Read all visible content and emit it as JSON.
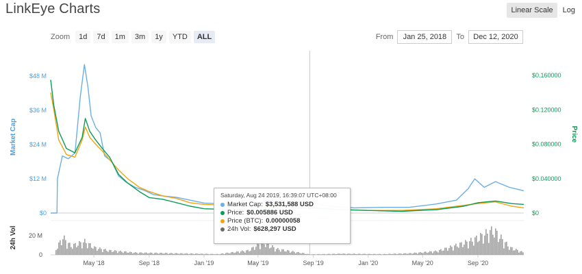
{
  "title": "LinkEye Charts",
  "scale_buttons": {
    "linear": "Linear Scale",
    "log": "Log",
    "active": "linear"
  },
  "zoom": {
    "label": "Zoom",
    "options": [
      "1d",
      "7d",
      "1m",
      "3m",
      "1y",
      "YTD",
      "ALL"
    ],
    "active": "ALL"
  },
  "range": {
    "from_label": "From",
    "from_value": "Jan 25, 2018",
    "to_label": "To",
    "to_value": "Dec 12, 2020"
  },
  "colors": {
    "market_cap": "#6aaee8",
    "price": "#0a9b57",
    "price_btc": "#f2a40f",
    "volume": "#8a8a8a"
  },
  "tooltip": {
    "header": "Saturday, Aug 24 2019, 16:39:07 UTC+08:00",
    "rows": [
      {
        "label": "Market Cap:",
        "value": "$3,531,588 USD",
        "color": "#6aaee8"
      },
      {
        "label": "Price:",
        "value": "$0.005886 USD",
        "color": "#0a9b57"
      },
      {
        "label": "Price (BTC):",
        "value": "0.00000058",
        "color": "#f2a40f"
      },
      {
        "label": "24h Vol:",
        "value": "$628,297 USD",
        "color": "#6b6b6b"
      }
    ]
  },
  "chart_data": {
    "type": "line",
    "title": "LinkEye Charts",
    "x_range": [
      "2018-01-25",
      "2020-12-12"
    ],
    "x_ticks": [
      "May '18",
      "Sep '18",
      "Jan '19",
      "May '19",
      "Sep '19",
      "Jan '20",
      "May '20",
      "Sep '20"
    ],
    "y_left": {
      "label": "Market Cap",
      "ticks": [
        "$0",
        "$12 M",
        "$24 M",
        "$36 M",
        "$48 M"
      ],
      "range": [
        0,
        53000000
      ]
    },
    "y_right": {
      "label": "Price",
      "ticks": [
        "$0",
        "$0.040000",
        "$0.080000",
        "$0.120000",
        "$0.160000"
      ],
      "range": [
        0,
        0.176
      ]
    },
    "volume_axis": {
      "label": "24h Vol",
      "ticks": [
        "0",
        "20 M"
      ],
      "range": [
        0,
        36000000
      ]
    },
    "crosshair_date": "2019-08-24",
    "series": [
      {
        "name": "Market Cap",
        "axis": "left",
        "points": [
          [
            "2018-01-25",
            0
          ],
          [
            "2018-02-08",
            0
          ],
          [
            "2018-02-09",
            12000000
          ],
          [
            "2018-02-20",
            20000000
          ],
          [
            "2018-03-05",
            19000000
          ],
          [
            "2018-03-20",
            21000000
          ],
          [
            "2018-04-01",
            41000000
          ],
          [
            "2018-04-10",
            52000000
          ],
          [
            "2018-04-18",
            44000000
          ],
          [
            "2018-04-25",
            34000000
          ],
          [
            "2018-05-05",
            30000000
          ],
          [
            "2018-05-15",
            28000000
          ],
          [
            "2018-05-25",
            20000000
          ],
          [
            "2018-06-10",
            18000000
          ],
          [
            "2018-06-25",
            13000000
          ],
          [
            "2018-07-10",
            11000000
          ],
          [
            "2018-08-01",
            9000000
          ],
          [
            "2018-08-20",
            8000000
          ],
          [
            "2018-09-10",
            6500000
          ],
          [
            "2018-10-01",
            6000000
          ],
          [
            "2018-11-01",
            5500000
          ],
          [
            "2018-12-01",
            4500000
          ],
          [
            "2019-01-01",
            3500000
          ],
          [
            "2019-02-15",
            3200000
          ],
          [
            "2019-04-01",
            3500000
          ],
          [
            "2019-05-15",
            4000000
          ],
          [
            "2019-06-20",
            4500000
          ],
          [
            "2019-08-24",
            3531588
          ],
          [
            "2019-10-01",
            2500000
          ],
          [
            "2019-12-01",
            1800000
          ],
          [
            "2020-02-01",
            2000000
          ],
          [
            "2020-04-01",
            2000000
          ],
          [
            "2020-06-01",
            3200000
          ],
          [
            "2020-07-15",
            4500000
          ],
          [
            "2020-08-10",
            8500000
          ],
          [
            "2020-08-25",
            12000000
          ],
          [
            "2020-09-15",
            9000000
          ],
          [
            "2020-10-10",
            11000000
          ],
          [
            "2020-11-10",
            9000000
          ],
          [
            "2020-12-12",
            7800000
          ]
        ]
      },
      {
        "name": "Price",
        "axis": "right",
        "points": [
          [
            "2018-01-25",
            0.155
          ],
          [
            "2018-02-01",
            0.125
          ],
          [
            "2018-02-12",
            0.095
          ],
          [
            "2018-03-01",
            0.075
          ],
          [
            "2018-03-20",
            0.07
          ],
          [
            "2018-04-05",
            0.088
          ],
          [
            "2018-04-12",
            0.11
          ],
          [
            "2018-04-22",
            0.095
          ],
          [
            "2018-05-05",
            0.085
          ],
          [
            "2018-05-20",
            0.075
          ],
          [
            "2018-06-05",
            0.065
          ],
          [
            "2018-06-25",
            0.045
          ],
          [
            "2018-07-15",
            0.035
          ],
          [
            "2018-08-10",
            0.025
          ],
          [
            "2018-09-01",
            0.018
          ],
          [
            "2018-10-01",
            0.016
          ],
          [
            "2018-11-01",
            0.012
          ],
          [
            "2018-12-01",
            0.008
          ],
          [
            "2019-01-01",
            0.005
          ],
          [
            "2019-03-01",
            0.004
          ],
          [
            "2019-05-01",
            0.005
          ],
          [
            "2019-06-20",
            0.006
          ],
          [
            "2019-08-24",
            0.005886
          ],
          [
            "2019-11-01",
            0.004
          ],
          [
            "2020-01-01",
            0.003
          ],
          [
            "2020-03-15",
            0.002
          ],
          [
            "2020-06-01",
            0.004
          ],
          [
            "2020-08-01",
            0.008
          ],
          [
            "2020-09-01",
            0.012
          ],
          [
            "2020-10-10",
            0.014
          ],
          [
            "2020-11-15",
            0.011
          ],
          [
            "2020-12-12",
            0.01
          ]
        ]
      },
      {
        "name": "Price (BTC)",
        "axis": "right",
        "points": [
          [
            "2018-01-25",
            0.14
          ],
          [
            "2018-02-01",
            0.12
          ],
          [
            "2018-02-12",
            0.085
          ],
          [
            "2018-03-01",
            0.068
          ],
          [
            "2018-03-20",
            0.065
          ],
          [
            "2018-04-05",
            0.085
          ],
          [
            "2018-04-12",
            0.1
          ],
          [
            "2018-04-22",
            0.088
          ],
          [
            "2018-05-05",
            0.08
          ],
          [
            "2018-05-20",
            0.072
          ],
          [
            "2018-06-05",
            0.062
          ],
          [
            "2018-06-25",
            0.05
          ],
          [
            "2018-07-15",
            0.04
          ],
          [
            "2018-08-10",
            0.03
          ],
          [
            "2018-09-01",
            0.025
          ],
          [
            "2018-10-01",
            0.02
          ],
          [
            "2018-11-01",
            0.017
          ],
          [
            "2018-12-01",
            0.012
          ],
          [
            "2019-01-01",
            0.01
          ],
          [
            "2019-03-01",
            0.009
          ],
          [
            "2019-05-01",
            0.008
          ],
          [
            "2019-06-20",
            0.006
          ],
          [
            "2019-08-24",
            0.0055
          ],
          [
            "2019-11-01",
            0.004
          ],
          [
            "2020-01-01",
            0.003
          ],
          [
            "2020-03-15",
            0.003
          ],
          [
            "2020-06-01",
            0.005
          ],
          [
            "2020-08-01",
            0.009
          ],
          [
            "2020-09-01",
            0.011
          ],
          [
            "2020-10-10",
            0.013
          ],
          [
            "2020-11-15",
            0.008
          ],
          [
            "2020-12-12",
            0.006
          ]
        ]
      },
      {
        "name": "24h Vol",
        "axis": "volume",
        "points": [
          [
            "2018-02-05",
            8000000
          ],
          [
            "2018-02-20",
            24000000
          ],
          [
            "2018-03-10",
            12000000
          ],
          [
            "2018-04-10",
            18000000
          ],
          [
            "2018-05-01",
            10000000
          ],
          [
            "2018-06-01",
            6000000
          ],
          [
            "2018-08-01",
            3000000
          ],
          [
            "2018-11-01",
            2000000
          ],
          [
            "2019-02-01",
            1000000
          ],
          [
            "2019-04-10",
            6000000
          ],
          [
            "2019-05-10",
            18000000
          ],
          [
            "2019-06-10",
            8000000
          ],
          [
            "2019-08-24",
            628297
          ],
          [
            "2019-11-01",
            1500000
          ],
          [
            "2020-02-01",
            1000000
          ],
          [
            "2020-04-01",
            2000000
          ],
          [
            "2020-06-01",
            5000000
          ],
          [
            "2020-07-20",
            14000000
          ],
          [
            "2020-08-20",
            20000000
          ],
          [
            "2020-10-05",
            34000000
          ],
          [
            "2020-11-10",
            10000000
          ],
          [
            "2020-12-12",
            3000000
          ]
        ]
      }
    ]
  }
}
